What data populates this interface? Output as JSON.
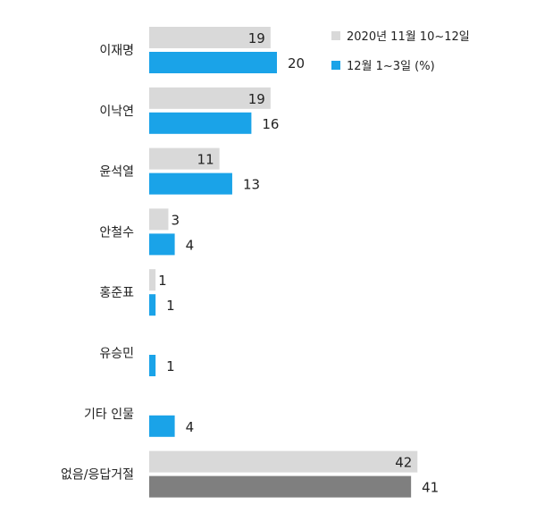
{
  "chart_data": {
    "type": "bar",
    "orientation": "horizontal",
    "categories": [
      "이재명",
      "이낙연",
      "윤석열",
      "안철수",
      "홍준표",
      "유승민",
      "기타 인물",
      "없음/응답거절"
    ],
    "series": [
      {
        "name": "2020년 11월 10~12일",
        "color": "#d9d9d9",
        "values": [
          19,
          19,
          11,
          3,
          1,
          null,
          null,
          42
        ],
        "labels": [
          "19",
          "19",
          "11",
          "3",
          "1",
          "",
          "",
          "42"
        ]
      },
      {
        "name": "12월 1~3일 (%)",
        "color": "#1aa3e8",
        "values": [
          20,
          16,
          13,
          4,
          1,
          1,
          4,
          41
        ],
        "labels": [
          "20",
          "16",
          "13",
          "4",
          "1",
          "1",
          "4",
          "41"
        ],
        "point_colors": {
          "7": "#7f7f7f"
        }
      }
    ],
    "xlim": [
      0,
      42
    ],
    "legend_position": "top-right",
    "grid": false
  }
}
